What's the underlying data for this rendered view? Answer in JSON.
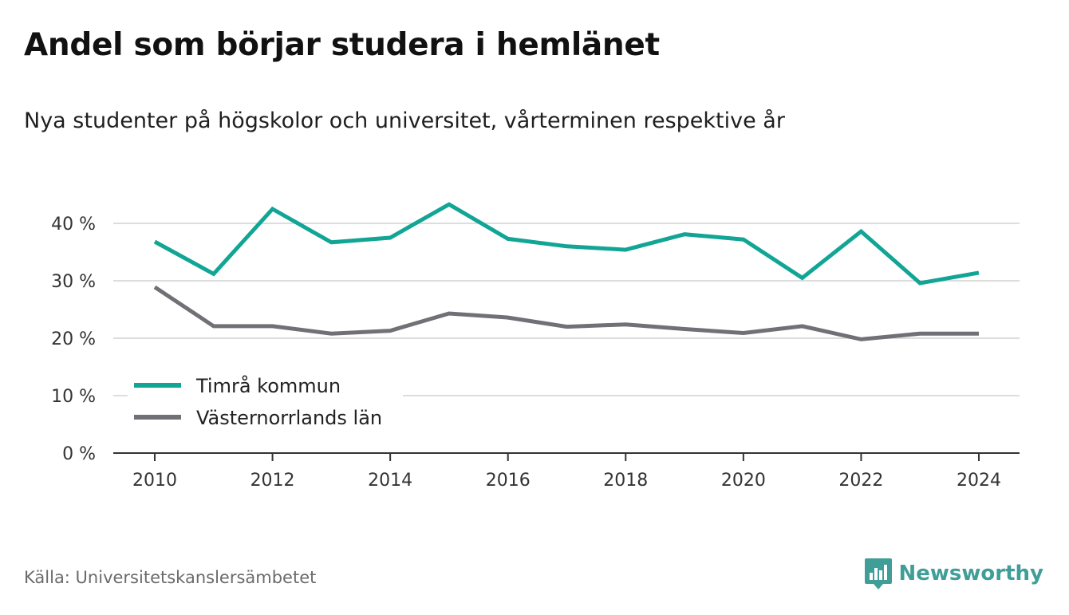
{
  "title": "Andel som börjar studera i hemlänet",
  "subtitle": "Nya studenter på högskolor och universitet, vårterminen respektive år",
  "source": "Källa: Universitetskanslersämbetet",
  "brand": {
    "name": "Newsworthy",
    "icon": "newsworthy-logo-icon",
    "color": "#3f9e97"
  },
  "colors": {
    "series_1": "#12a595",
    "series_2": "#727076",
    "grid": "#dddddd",
    "axis": "#333333"
  },
  "chart_data": {
    "type": "line",
    "x": [
      2010,
      2011,
      2012,
      2013,
      2014,
      2015,
      2016,
      2017,
      2018,
      2019,
      2020,
      2021,
      2022,
      2023,
      2024
    ],
    "x_ticks": [
      "2010",
      "2012",
      "2014",
      "2016",
      "2018",
      "2020",
      "2022",
      "2024"
    ],
    "y_ticks": [
      "0 %",
      "10 %",
      "20 %",
      "30 %",
      "40 %"
    ],
    "ylim": [
      0,
      40
    ],
    "grid": true,
    "legend_position": "bottom-left",
    "series": [
      {
        "name": "Timrå kommun",
        "color": "#12a595",
        "values": [
          36.8,
          31.2,
          42.5,
          36.7,
          37.5,
          43.3,
          37.3,
          36.0,
          35.4,
          38.1,
          37.2,
          30.5,
          38.6,
          29.6,
          31.4
        ]
      },
      {
        "name": "Västernorrlands län",
        "color": "#727076",
        "values": [
          28.9,
          22.1,
          22.1,
          20.8,
          21.3,
          24.3,
          23.6,
          22.0,
          22.4,
          21.6,
          20.9,
          22.1,
          19.8,
          20.8,
          20.8
        ]
      }
    ]
  }
}
